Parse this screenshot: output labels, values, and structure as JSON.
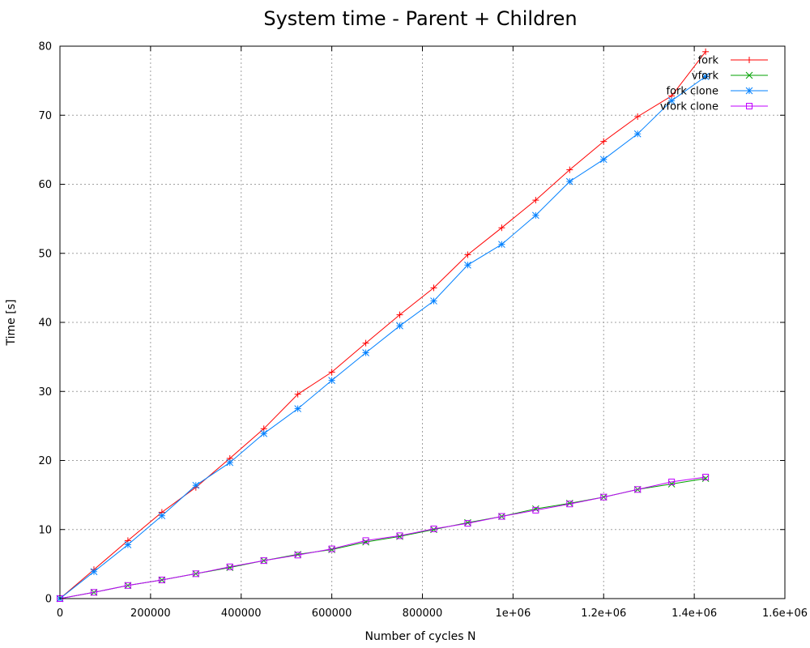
{
  "chart_data": {
    "type": "line",
    "title": "System time - Parent + Children",
    "xlabel": "Number of cycles N",
    "ylabel": "Time [s]",
    "xlim": [
      0,
      1600000
    ],
    "ylim": [
      0,
      80
    ],
    "xticks": [
      0,
      200000,
      400000,
      600000,
      800000,
      1000000,
      1200000,
      1400000,
      1600000
    ],
    "xtick_labels": [
      "0",
      "200000",
      "400000",
      "600000",
      "800000",
      "1e+06",
      "1.2e+06",
      "1.4e+06",
      "1.6e+06"
    ],
    "yticks": [
      0,
      10,
      20,
      30,
      40,
      50,
      60,
      70,
      80
    ],
    "ytick_labels": [
      "0",
      "10",
      "20",
      "30",
      "40",
      "50",
      "60",
      "70",
      "80"
    ],
    "grid": true,
    "legend_position": "top-right",
    "x": [
      0,
      75000,
      150000,
      225000,
      300000,
      375000,
      450000,
      525000,
      600000,
      675000,
      750000,
      825000,
      900000,
      975000,
      1050000,
      1125000,
      1200000,
      1275000,
      1350000,
      1425000
    ],
    "series": [
      {
        "name": "fork",
        "color": "#ff0000",
        "marker": "plus",
        "values": [
          0,
          4.2,
          8.4,
          12.5,
          16.1,
          20.3,
          24.6,
          29.6,
          32.8,
          37.0,
          41.1,
          45.0,
          49.8,
          53.7,
          57.7,
          62.1,
          66.2,
          69.8,
          72.8,
          79.2
        ]
      },
      {
        "name": "vfork",
        "color": "#00a000",
        "marker": "cross",
        "values": [
          0,
          0.9,
          1.9,
          2.7,
          3.6,
          4.5,
          5.5,
          6.4,
          7.1,
          8.2,
          9.0,
          10.0,
          11.0,
          11.9,
          13.0,
          13.8,
          14.7,
          15.8,
          16.6,
          17.4
        ]
      },
      {
        "name": "fork clone",
        "color": "#0080ff",
        "marker": "star",
        "values": [
          0,
          3.9,
          7.8,
          12.0,
          16.4,
          19.7,
          23.9,
          27.5,
          31.6,
          35.6,
          39.5,
          43.1,
          48.3,
          51.3,
          55.5,
          60.4,
          63.6,
          67.3,
          72.1,
          75.6
        ]
      },
      {
        "name": "vfork clone",
        "color": "#c000ff",
        "marker": "square",
        "values": [
          0,
          0.9,
          1.9,
          2.7,
          3.6,
          4.6,
          5.5,
          6.3,
          7.2,
          8.4,
          9.1,
          10.1,
          10.9,
          11.9,
          12.8,
          13.7,
          14.7,
          15.8,
          16.9,
          17.6
        ]
      }
    ]
  }
}
